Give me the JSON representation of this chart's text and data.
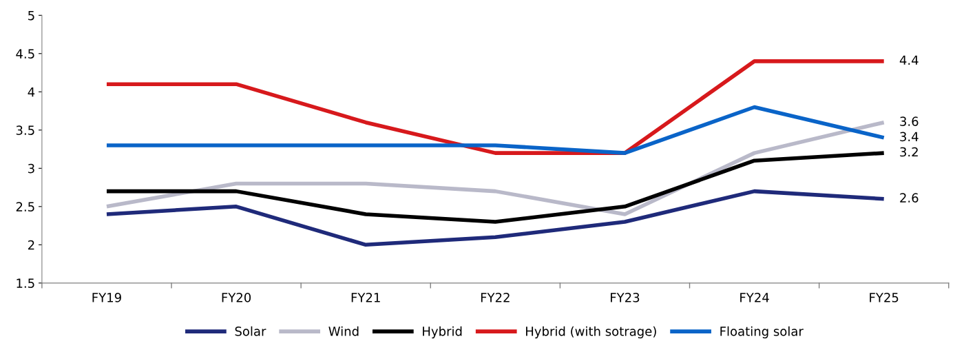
{
  "chart_data": {
    "type": "line",
    "categories": [
      "FY19",
      "FY20",
      "FY21",
      "FY22",
      "FY23",
      "FY24",
      "FY25"
    ],
    "series": [
      {
        "name": "Solar",
        "color": "#1f2a7a",
        "values": [
          2.4,
          2.5,
          2.0,
          2.1,
          2.3,
          2.7,
          2.6
        ],
        "value_labels": [
          null,
          null,
          null,
          null,
          null,
          null,
          "2.6"
        ]
      },
      {
        "name": "Wind",
        "color": "#b9b9c9",
        "values": [
          2.5,
          2.8,
          2.8,
          2.7,
          2.4,
          3.2,
          3.6
        ],
        "value_labels": [
          null,
          null,
          null,
          null,
          null,
          null,
          "3.6"
        ]
      },
      {
        "name": "Hybrid",
        "color": "#000000",
        "values": [
          2.7,
          2.7,
          2.4,
          2.3,
          2.5,
          3.1,
          3.2
        ],
        "value_labels": [
          null,
          null,
          null,
          null,
          null,
          null,
          "3.2"
        ]
      },
      {
        "name": "Hybrid (with sotrage)",
        "color": "#d7191c",
        "values": [
          4.1,
          4.1,
          3.6,
          3.2,
          3.2,
          4.4,
          4.4
        ],
        "value_labels": [
          null,
          null,
          null,
          null,
          null,
          null,
          "4.4"
        ]
      },
      {
        "name": "Floating solar",
        "color": "#0a64c8",
        "values": [
          3.3,
          3.3,
          3.3,
          3.3,
          3.2,
          3.8,
          3.4
        ],
        "value_labels": [
          null,
          null,
          null,
          null,
          null,
          null,
          "3.4"
        ]
      }
    ],
    "ylim": [
      1.5,
      5
    ],
    "yticks": [
      1.5,
      2,
      2.5,
      3,
      3.5,
      4,
      4.5,
      5
    ],
    "grid": false,
    "legend": "bottom",
    "marker": "none",
    "line_style": "solid"
  }
}
